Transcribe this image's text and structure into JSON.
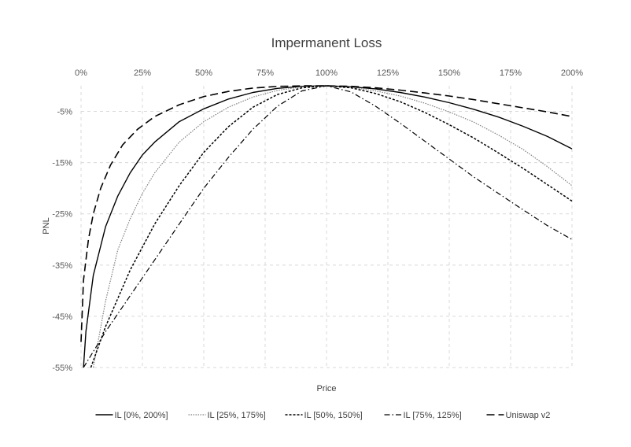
{
  "chart_data": {
    "type": "line",
    "title": "Impermanent Loss",
    "xlabel": "Price",
    "ylabel": "PNL",
    "xlim": [
      0,
      200
    ],
    "ylim": [
      -55,
      0
    ],
    "x_ticks": [
      0,
      25,
      50,
      75,
      100,
      125,
      150,
      175,
      200
    ],
    "x_tick_labels": [
      "0%",
      "25%",
      "50%",
      "75%",
      "100%",
      "125%",
      "150%",
      "175%",
      "200%"
    ],
    "y_ticks": [
      -5,
      -15,
      -25,
      -35,
      -45,
      -55
    ],
    "y_tick_labels": [
      "-5%",
      "-15%",
      "-25%",
      "-35%",
      "-45%",
      "-55%"
    ],
    "x_axis_position": "top",
    "grid": "dashed",
    "legend_position": "bottom",
    "series": [
      {
        "name": "IL [0%, 200%]",
        "dash": "solid",
        "color": "#000000",
        "points": [
          [
            1,
            -55
          ],
          [
            2,
            -48
          ],
          [
            5,
            -37
          ],
          [
            10,
            -27.5
          ],
          [
            15,
            -21.5
          ],
          [
            20,
            -17
          ],
          [
            25,
            -13.5
          ],
          [
            30,
            -11
          ],
          [
            40,
            -7
          ],
          [
            50,
            -4.5
          ],
          [
            60,
            -2.6
          ],
          [
            70,
            -1.3
          ],
          [
            80,
            -0.5
          ],
          [
            90,
            -0.1
          ],
          [
            100,
            0
          ],
          [
            110,
            -0.2
          ],
          [
            120,
            -0.6
          ],
          [
            130,
            -1.3
          ],
          [
            140,
            -2.2
          ],
          [
            150,
            -3.3
          ],
          [
            160,
            -4.6
          ],
          [
            170,
            -6.1
          ],
          [
            180,
            -7.9
          ],
          [
            190,
            -9.9
          ],
          [
            200,
            -12.3
          ]
        ]
      },
      {
        "name": "IL [25%, 175%]",
        "dash": "dotted",
        "color": "#808080",
        "points": [
          [
            5,
            -55
          ],
          [
            10,
            -42
          ],
          [
            15,
            -32
          ],
          [
            20,
            -26
          ],
          [
            25,
            -21
          ],
          [
            30,
            -17
          ],
          [
            40,
            -11
          ],
          [
            50,
            -7
          ],
          [
            60,
            -4.2
          ],
          [
            70,
            -2.2
          ],
          [
            80,
            -0.9
          ],
          [
            90,
            -0.2
          ],
          [
            100,
            0
          ],
          [
            110,
            -0.3
          ],
          [
            120,
            -1
          ],
          [
            130,
            -2
          ],
          [
            140,
            -3.4
          ],
          [
            150,
            -5.1
          ],
          [
            160,
            -7.1
          ],
          [
            170,
            -9.6
          ],
          [
            180,
            -12.4
          ],
          [
            190,
            -15.8
          ],
          [
            200,
            -19.5
          ]
        ]
      },
      {
        "name": "IL [50%, 150%]",
        "dash": "short-dash",
        "color": "#000000",
        "points": [
          [
            4,
            -55
          ],
          [
            10,
            -47
          ],
          [
            20,
            -36
          ],
          [
            30,
            -27
          ],
          [
            40,
            -19.5
          ],
          [
            50,
            -13
          ],
          [
            60,
            -8
          ],
          [
            70,
            -4.2
          ],
          [
            80,
            -1.7
          ],
          [
            90,
            -0.4
          ],
          [
            100,
            0
          ],
          [
            110,
            -0.4
          ],
          [
            120,
            -1.5
          ],
          [
            130,
            -3.1
          ],
          [
            140,
            -5.2
          ],
          [
            150,
            -7.6
          ],
          [
            160,
            -10.2
          ],
          [
            170,
            -13.1
          ],
          [
            180,
            -16.1
          ],
          [
            190,
            -19.3
          ],
          [
            200,
            -22.5
          ]
        ]
      },
      {
        "name": "IL [75%, 125%]",
        "dash": "dash-dot",
        "color": "#000000",
        "points": [
          [
            1,
            -55
          ],
          [
            10,
            -48
          ],
          [
            20,
            -41
          ],
          [
            30,
            -34
          ],
          [
            40,
            -27
          ],
          [
            50,
            -20
          ],
          [
            60,
            -14
          ],
          [
            70,
            -8.5
          ],
          [
            80,
            -4
          ],
          [
            90,
            -1
          ],
          [
            100,
            0
          ],
          [
            110,
            -1.2
          ],
          [
            120,
            -4
          ],
          [
            130,
            -7.3
          ],
          [
            140,
            -10.8
          ],
          [
            150,
            -14.3
          ],
          [
            160,
            -17.8
          ],
          [
            170,
            -21
          ],
          [
            180,
            -24.2
          ],
          [
            190,
            -27.3
          ],
          [
            200,
            -30
          ]
        ]
      },
      {
        "name": "Uniswap v2",
        "dash": "long-dash",
        "color": "#000000",
        "points": [
          [
            0,
            -50
          ],
          [
            1,
            -38
          ],
          [
            3,
            -30
          ],
          [
            5,
            -25
          ],
          [
            8,
            -20
          ],
          [
            12,
            -15.5
          ],
          [
            17,
            -11.5
          ],
          [
            23,
            -8.5
          ],
          [
            30,
            -6
          ],
          [
            40,
            -3.7
          ],
          [
            50,
            -2.1
          ],
          [
            60,
            -1.1
          ],
          [
            70,
            -0.45
          ],
          [
            80,
            -0.12
          ],
          [
            90,
            -0.02
          ],
          [
            100,
            0
          ],
          [
            110,
            -0.1
          ],
          [
            120,
            -0.4
          ],
          [
            130,
            -0.85
          ],
          [
            140,
            -1.4
          ],
          [
            150,
            -2
          ],
          [
            160,
            -2.7
          ],
          [
            170,
            -3.5
          ],
          [
            180,
            -4.3
          ],
          [
            190,
            -5.1
          ],
          [
            200,
            -6
          ]
        ]
      }
    ]
  }
}
